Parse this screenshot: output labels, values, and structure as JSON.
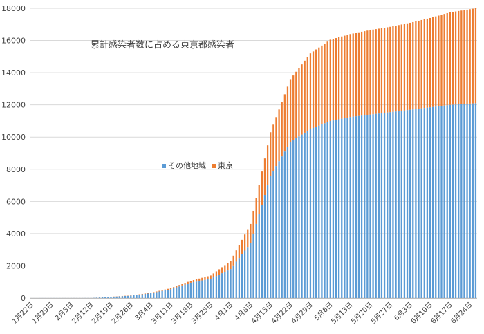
{
  "chart_data": {
    "type": "bar",
    "stacked": true,
    "title": "累計感染者数に占める東京都感染者",
    "xlabel": "",
    "ylabel": "",
    "ylim": [
      0,
      18000
    ],
    "yticks": [
      0,
      2000,
      4000,
      6000,
      8000,
      10000,
      12000,
      14000,
      16000,
      18000
    ],
    "grid": true,
    "legend_position": "center",
    "x_range": [
      "1月22日",
      "6月26日"
    ],
    "tick_labels": [
      "1月22日",
      "1月29日",
      "2月5日",
      "2月12日",
      "2月19日",
      "2月26日",
      "3月4日",
      "3月11日",
      "3月18日",
      "3月25日",
      "4月1日",
      "4月8日",
      "4月15日",
      "4月22日",
      "4月29日",
      "5月6日",
      "5月13日",
      "5月20日",
      "5月27日",
      "6月3日",
      "6月10日",
      "6月17日",
      "6月24日"
    ],
    "series": [
      {
        "name": "その他地域",
        "color": "#5B9BD5",
        "anchors": [
          [
            0,
            1
          ],
          [
            21,
            5
          ],
          [
            35,
            150
          ],
          [
            42,
            300
          ],
          [
            49,
            550
          ],
          [
            56,
            950
          ],
          [
            63,
            1200
          ],
          [
            70,
            1800
          ],
          [
            77,
            3400
          ],
          [
            84,
            7600
          ],
          [
            91,
            9700
          ],
          [
            98,
            10500
          ],
          [
            105,
            11000
          ],
          [
            112,
            11250
          ],
          [
            119,
            11400
          ],
          [
            126,
            11550
          ],
          [
            133,
            11700
          ],
          [
            140,
            11850
          ],
          [
            147,
            12000
          ],
          [
            156,
            12100
          ]
        ]
      },
      {
        "name": "東京",
        "color": "#ED7D31",
        "anchors": [
          [
            0,
            0
          ],
          [
            21,
            1
          ],
          [
            35,
            15
          ],
          [
            42,
            30
          ],
          [
            49,
            60
          ],
          [
            56,
            120
          ],
          [
            63,
            200
          ],
          [
            70,
            500
          ],
          [
            77,
            1200
          ],
          [
            84,
            2700
          ],
          [
            91,
            3900
          ],
          [
            98,
            4700
          ],
          [
            105,
            5050
          ],
          [
            112,
            5150
          ],
          [
            119,
            5250
          ],
          [
            126,
            5300
          ],
          [
            133,
            5400
          ],
          [
            140,
            5550
          ],
          [
            147,
            5750
          ],
          [
            156,
            5900
          ]
        ]
      }
    ]
  }
}
